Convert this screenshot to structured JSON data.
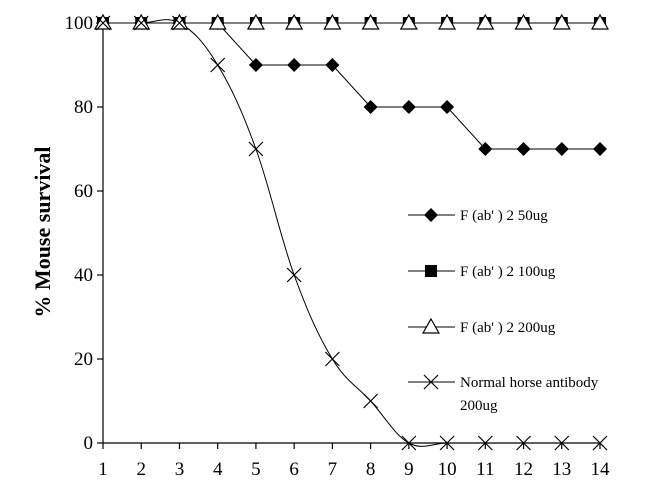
{
  "chart_data": {
    "type": "line",
    "title": "",
    "xlabel": "",
    "ylabel": "% Mouse survival",
    "x": [
      1,
      2,
      3,
      4,
      5,
      6,
      7,
      8,
      9,
      10,
      11,
      12,
      13,
      14
    ],
    "xlim": [
      1,
      14
    ],
    "ylim": [
      0,
      100
    ],
    "yticks": [
      0,
      20,
      40,
      60,
      80,
      100
    ],
    "grid": false,
    "legend_position": "right",
    "series": [
      {
        "name": "F (ab' ) 2 50ug",
        "marker": "filled-diamond",
        "values": [
          100,
          100,
          100,
          100,
          90,
          90,
          90,
          80,
          80,
          80,
          70,
          70,
          70,
          70
        ]
      },
      {
        "name": "F (ab' ) 2 100ug",
        "marker": "filled-square",
        "values": [
          100,
          100,
          100,
          100,
          100,
          100,
          100,
          100,
          100,
          100,
          100,
          100,
          100,
          100
        ]
      },
      {
        "name": "F (ab' ) 2 200ug",
        "marker": "open-triangle",
        "values": [
          100,
          100,
          100,
          100,
          100,
          100,
          100,
          100,
          100,
          100,
          100,
          100,
          100,
          100
        ]
      },
      {
        "name": "Normal horse antibody 200ug",
        "marker": "x-cross",
        "smooth": true,
        "values": [
          100,
          100,
          100,
          90,
          70,
          40,
          20,
          10,
          0,
          0,
          0,
          0,
          0,
          0
        ]
      }
    ],
    "legend": [
      {
        "line1": "F (ab' ) 2 50ug",
        "line2": ""
      },
      {
        "line1": "F (ab' ) 2 100ug",
        "line2": ""
      },
      {
        "line1": "F (ab' ) 2 200ug",
        "line2": ""
      },
      {
        "line1": "Normal horse antibody",
        "line2": "200ug"
      }
    ]
  }
}
